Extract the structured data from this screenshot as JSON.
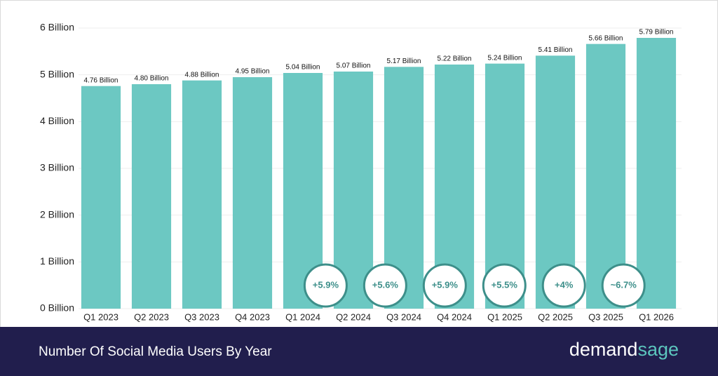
{
  "chart_data": {
    "type": "bar",
    "title": "Number Of Social Media Users By Year",
    "brand": [
      "demand",
      "sage"
    ],
    "categories": [
      "Q1 2023",
      "Q2 2023",
      "Q3 2023",
      "Q4 2023",
      "Q1 2024",
      "Q2 2024",
      "Q3 2024",
      "Q4 2024",
      "Q1 2025",
      "Q2 2025",
      "Q3 2025",
      "Q1 2026"
    ],
    "values": [
      4.76,
      4.8,
      4.88,
      4.95,
      5.04,
      5.07,
      5.17,
      5.22,
      5.24,
      5.41,
      5.66,
      5.79
    ],
    "value_labels": [
      "4.76 Billion",
      "4.80 Billion",
      "4.88 Billion",
      "4.95 Billion",
      "5.04 Billion",
      "5.07 Billion",
      "5.17 Billion",
      "5.22 Billion",
      "5.24 Billion",
      "5.41 Billion",
      "5.66 Billion",
      "5.79 Billion"
    ],
    "color": "#6cc8c2",
    "ylim": [
      0,
      6
    ],
    "yticks": [
      {
        "value": 0,
        "label": "0 Billion"
      },
      {
        "value": 1,
        "label": "1 Billion"
      },
      {
        "value": 2,
        "label": "2 Billion"
      },
      {
        "value": 3,
        "label": "3 Billion"
      },
      {
        "value": 4,
        "label": "4 Billion"
      },
      {
        "value": 5,
        "label": "5 Billion"
      },
      {
        "value": 6,
        "label": "6 Billion"
      }
    ],
    "grid": true,
    "annotations": [
      "+5.9%",
      "+5.6%",
      "+5.9%",
      "+5.5%",
      "+4%",
      "~6.7%"
    ]
  }
}
